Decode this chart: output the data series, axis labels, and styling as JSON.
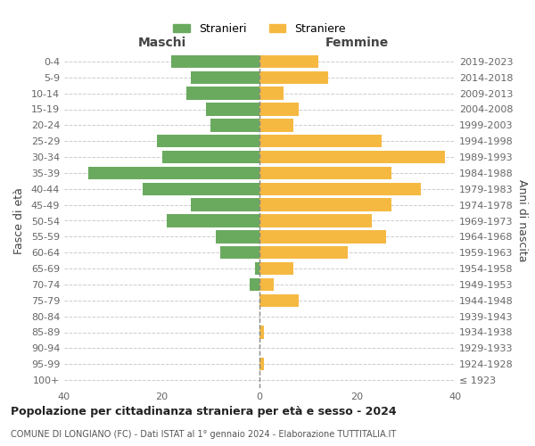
{
  "age_groups": [
    "100+",
    "95-99",
    "90-94",
    "85-89",
    "80-84",
    "75-79",
    "70-74",
    "65-69",
    "60-64",
    "55-59",
    "50-54",
    "45-49",
    "40-44",
    "35-39",
    "30-34",
    "25-29",
    "20-24",
    "15-19",
    "10-14",
    "5-9",
    "0-4"
  ],
  "birth_years": [
    "≤ 1923",
    "1924-1928",
    "1929-1933",
    "1934-1938",
    "1939-1943",
    "1944-1948",
    "1949-1953",
    "1954-1958",
    "1959-1963",
    "1964-1968",
    "1969-1973",
    "1974-1978",
    "1979-1983",
    "1984-1988",
    "1989-1993",
    "1994-1998",
    "1999-2003",
    "2004-2008",
    "2009-2013",
    "2014-2018",
    "2019-2023"
  ],
  "males": [
    0,
    0,
    0,
    0,
    0,
    0,
    2,
    1,
    8,
    9,
    19,
    14,
    24,
    35,
    20,
    21,
    10,
    11,
    15,
    14,
    18
  ],
  "females": [
    0,
    1,
    0,
    1,
    0,
    8,
    3,
    7,
    18,
    26,
    23,
    27,
    33,
    27,
    38,
    25,
    7,
    8,
    5,
    14,
    12
  ],
  "male_color": "#6aaa5f",
  "female_color": "#f5b942",
  "background_color": "#ffffff",
  "grid_color": "#cccccc",
  "title": "Popolazione per cittadinanza straniera per età e sesso - 2024",
  "subtitle": "COMUNE DI LONGIANO (FC) - Dati ISTAT al 1° gennaio 2024 - Elaborazione TUTTITALIA.IT",
  "xlabel_left": "Maschi",
  "xlabel_right": "Femmine",
  "ylabel_left": "Fasce di età",
  "ylabel_right": "Anni di nascita",
  "legend_stranieri": "Stranieri",
  "legend_straniere": "Straniere",
  "xlim": 40,
  "bar_height": 0.8
}
